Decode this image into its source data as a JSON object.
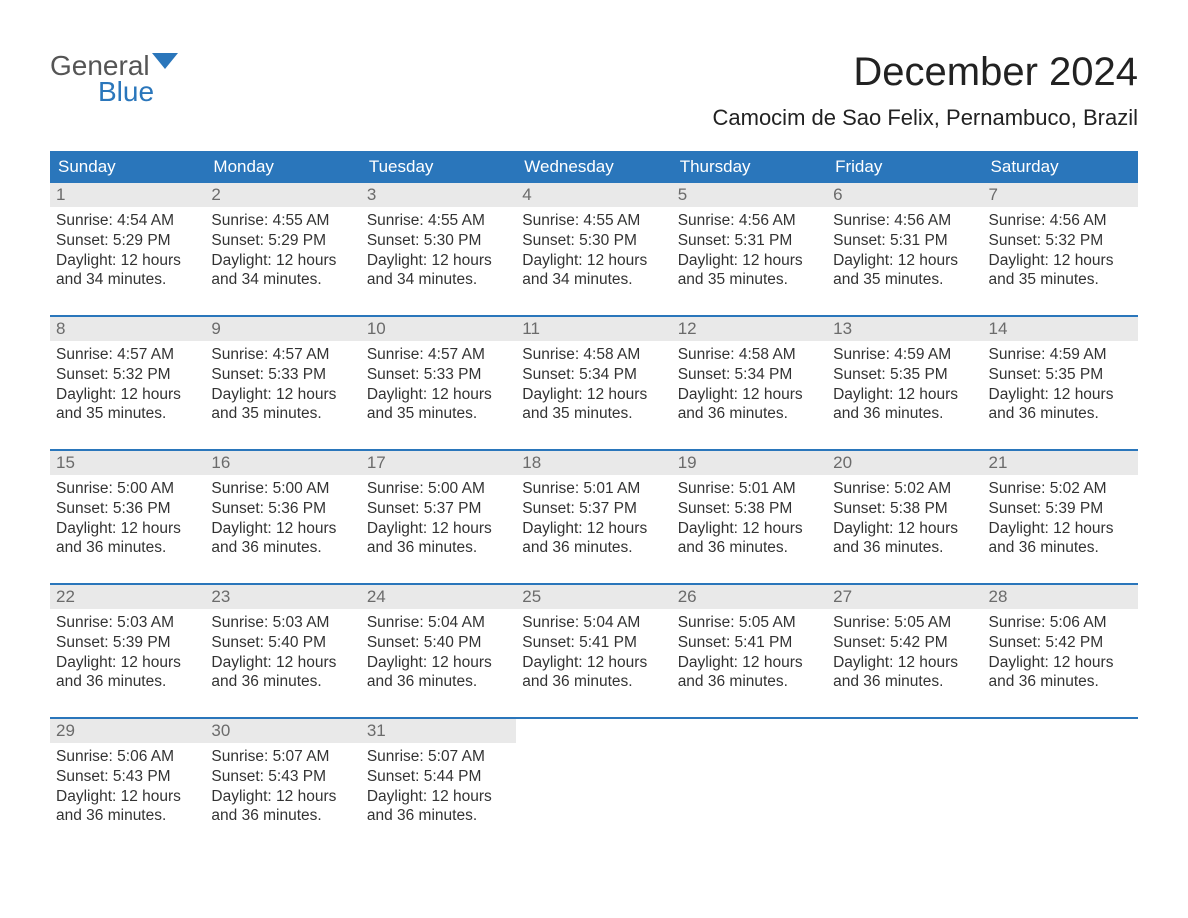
{
  "logo": {
    "top": "General",
    "bottom": "Blue",
    "flag_color": "#2a76bb"
  },
  "title": "December 2024",
  "subtitle": "Camocim de Sao Felix, Pernambuco, Brazil",
  "colors": {
    "header_bg": "#2a76bb",
    "header_fg": "#ffffff",
    "daynum_bg": "#e9e9e9",
    "daynum_fg": "#6b6b6b",
    "body_fg": "#333333",
    "week_border": "#2a76bb",
    "page_bg": "#ffffff"
  },
  "fonts": {
    "title_pt": 40,
    "subtitle_pt": 22,
    "dow_pt": 17,
    "daynum_pt": 17,
    "body_pt": 15.5,
    "logo_pt": 28
  },
  "days_of_week": [
    "Sunday",
    "Monday",
    "Tuesday",
    "Wednesday",
    "Thursday",
    "Friday",
    "Saturday"
  ],
  "weeks": [
    [
      {
        "n": "1",
        "sunrise": "Sunrise: 4:54 AM",
        "sunset": "Sunset: 5:29 PM",
        "d1": "Daylight: 12 hours",
        "d2": "and 34 minutes."
      },
      {
        "n": "2",
        "sunrise": "Sunrise: 4:55 AM",
        "sunset": "Sunset: 5:29 PM",
        "d1": "Daylight: 12 hours",
        "d2": "and 34 minutes."
      },
      {
        "n": "3",
        "sunrise": "Sunrise: 4:55 AM",
        "sunset": "Sunset: 5:30 PM",
        "d1": "Daylight: 12 hours",
        "d2": "and 34 minutes."
      },
      {
        "n": "4",
        "sunrise": "Sunrise: 4:55 AM",
        "sunset": "Sunset: 5:30 PM",
        "d1": "Daylight: 12 hours",
        "d2": "and 34 minutes."
      },
      {
        "n": "5",
        "sunrise": "Sunrise: 4:56 AM",
        "sunset": "Sunset: 5:31 PM",
        "d1": "Daylight: 12 hours",
        "d2": "and 35 minutes."
      },
      {
        "n": "6",
        "sunrise": "Sunrise: 4:56 AM",
        "sunset": "Sunset: 5:31 PM",
        "d1": "Daylight: 12 hours",
        "d2": "and 35 minutes."
      },
      {
        "n": "7",
        "sunrise": "Sunrise: 4:56 AM",
        "sunset": "Sunset: 5:32 PM",
        "d1": "Daylight: 12 hours",
        "d2": "and 35 minutes."
      }
    ],
    [
      {
        "n": "8",
        "sunrise": "Sunrise: 4:57 AM",
        "sunset": "Sunset: 5:32 PM",
        "d1": "Daylight: 12 hours",
        "d2": "and 35 minutes."
      },
      {
        "n": "9",
        "sunrise": "Sunrise: 4:57 AM",
        "sunset": "Sunset: 5:33 PM",
        "d1": "Daylight: 12 hours",
        "d2": "and 35 minutes."
      },
      {
        "n": "10",
        "sunrise": "Sunrise: 4:57 AM",
        "sunset": "Sunset: 5:33 PM",
        "d1": "Daylight: 12 hours",
        "d2": "and 35 minutes."
      },
      {
        "n": "11",
        "sunrise": "Sunrise: 4:58 AM",
        "sunset": "Sunset: 5:34 PM",
        "d1": "Daylight: 12 hours",
        "d2": "and 35 minutes."
      },
      {
        "n": "12",
        "sunrise": "Sunrise: 4:58 AM",
        "sunset": "Sunset: 5:34 PM",
        "d1": "Daylight: 12 hours",
        "d2": "and 36 minutes."
      },
      {
        "n": "13",
        "sunrise": "Sunrise: 4:59 AM",
        "sunset": "Sunset: 5:35 PM",
        "d1": "Daylight: 12 hours",
        "d2": "and 36 minutes."
      },
      {
        "n": "14",
        "sunrise": "Sunrise: 4:59 AM",
        "sunset": "Sunset: 5:35 PM",
        "d1": "Daylight: 12 hours",
        "d2": "and 36 minutes."
      }
    ],
    [
      {
        "n": "15",
        "sunrise": "Sunrise: 5:00 AM",
        "sunset": "Sunset: 5:36 PM",
        "d1": "Daylight: 12 hours",
        "d2": "and 36 minutes."
      },
      {
        "n": "16",
        "sunrise": "Sunrise: 5:00 AM",
        "sunset": "Sunset: 5:36 PM",
        "d1": "Daylight: 12 hours",
        "d2": "and 36 minutes."
      },
      {
        "n": "17",
        "sunrise": "Sunrise: 5:00 AM",
        "sunset": "Sunset: 5:37 PM",
        "d1": "Daylight: 12 hours",
        "d2": "and 36 minutes."
      },
      {
        "n": "18",
        "sunrise": "Sunrise: 5:01 AM",
        "sunset": "Sunset: 5:37 PM",
        "d1": "Daylight: 12 hours",
        "d2": "and 36 minutes."
      },
      {
        "n": "19",
        "sunrise": "Sunrise: 5:01 AM",
        "sunset": "Sunset: 5:38 PM",
        "d1": "Daylight: 12 hours",
        "d2": "and 36 minutes."
      },
      {
        "n": "20",
        "sunrise": "Sunrise: 5:02 AM",
        "sunset": "Sunset: 5:38 PM",
        "d1": "Daylight: 12 hours",
        "d2": "and 36 minutes."
      },
      {
        "n": "21",
        "sunrise": "Sunrise: 5:02 AM",
        "sunset": "Sunset: 5:39 PM",
        "d1": "Daylight: 12 hours",
        "d2": "and 36 minutes."
      }
    ],
    [
      {
        "n": "22",
        "sunrise": "Sunrise: 5:03 AM",
        "sunset": "Sunset: 5:39 PM",
        "d1": "Daylight: 12 hours",
        "d2": "and 36 minutes."
      },
      {
        "n": "23",
        "sunrise": "Sunrise: 5:03 AM",
        "sunset": "Sunset: 5:40 PM",
        "d1": "Daylight: 12 hours",
        "d2": "and 36 minutes."
      },
      {
        "n": "24",
        "sunrise": "Sunrise: 5:04 AM",
        "sunset": "Sunset: 5:40 PM",
        "d1": "Daylight: 12 hours",
        "d2": "and 36 minutes."
      },
      {
        "n": "25",
        "sunrise": "Sunrise: 5:04 AM",
        "sunset": "Sunset: 5:41 PM",
        "d1": "Daylight: 12 hours",
        "d2": "and 36 minutes."
      },
      {
        "n": "26",
        "sunrise": "Sunrise: 5:05 AM",
        "sunset": "Sunset: 5:41 PM",
        "d1": "Daylight: 12 hours",
        "d2": "and 36 minutes."
      },
      {
        "n": "27",
        "sunrise": "Sunrise: 5:05 AM",
        "sunset": "Sunset: 5:42 PM",
        "d1": "Daylight: 12 hours",
        "d2": "and 36 minutes."
      },
      {
        "n": "28",
        "sunrise": "Sunrise: 5:06 AM",
        "sunset": "Sunset: 5:42 PM",
        "d1": "Daylight: 12 hours",
        "d2": "and 36 minutes."
      }
    ],
    [
      {
        "n": "29",
        "sunrise": "Sunrise: 5:06 AM",
        "sunset": "Sunset: 5:43 PM",
        "d1": "Daylight: 12 hours",
        "d2": "and 36 minutes."
      },
      {
        "n": "30",
        "sunrise": "Sunrise: 5:07 AM",
        "sunset": "Sunset: 5:43 PM",
        "d1": "Daylight: 12 hours",
        "d2": "and 36 minutes."
      },
      {
        "n": "31",
        "sunrise": "Sunrise: 5:07 AM",
        "sunset": "Sunset: 5:44 PM",
        "d1": "Daylight: 12 hours",
        "d2": "and 36 minutes."
      },
      {
        "empty": true
      },
      {
        "empty": true
      },
      {
        "empty": true
      },
      {
        "empty": true
      }
    ]
  ]
}
